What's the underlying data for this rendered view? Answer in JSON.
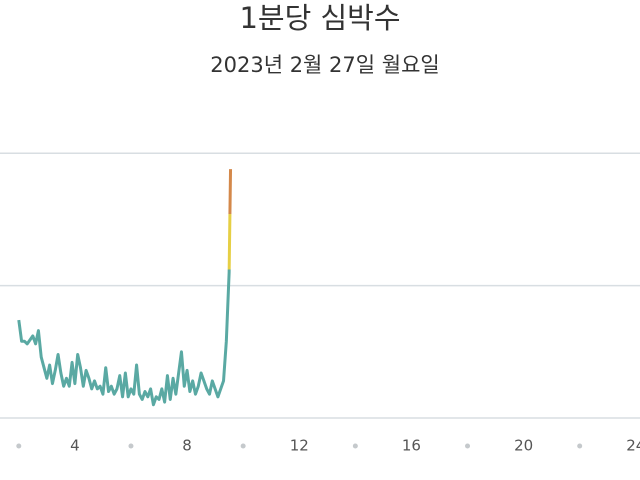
{
  "chart_data": {
    "type": "line",
    "title": "1분당 심박수",
    "subtitle": "2023년 2월 27일 월요일",
    "x": [
      2.0,
      2.1,
      2.2,
      2.3,
      2.5,
      2.6,
      2.7,
      2.8,
      2.9,
      3.0,
      3.1,
      3.2,
      3.3,
      3.4,
      3.5,
      3.6,
      3.7,
      3.8,
      3.9,
      4.0,
      4.1,
      4.2,
      4.3,
      4.4,
      4.5,
      4.6,
      4.7,
      4.8,
      4.9,
      5.0,
      5.1,
      5.2,
      5.3,
      5.4,
      5.5,
      5.6,
      5.7,
      5.8,
      5.9,
      6.0,
      6.1,
      6.2,
      6.3,
      6.4,
      6.5,
      6.6,
      6.7,
      6.8,
      6.9,
      7.0,
      7.1,
      7.2,
      7.3,
      7.4,
      7.5,
      7.6,
      7.7,
      7.8,
      7.9,
      8.0,
      8.1,
      8.2,
      8.3,
      8.4,
      8.5,
      8.6,
      8.7,
      8.8,
      8.9,
      9.0,
      9.1,
      9.2,
      9.3,
      9.4,
      9.5,
      9.55
    ],
    "series": [
      {
        "color": "#5aa9a3",
        "values": [
          87,
          79,
          79,
          78,
          81,
          78,
          83,
          73,
          69,
          65,
          70,
          63,
          68,
          74,
          67,
          62,
          65,
          62,
          71,
          63,
          74,
          69,
          62,
          68,
          65,
          61,
          64,
          61,
          62,
          59,
          69,
          60,
          62,
          59,
          61,
          66,
          58,
          67,
          58,
          61,
          59,
          70,
          59,
          57,
          60,
          58,
          61,
          55,
          58,
          57,
          61,
          56,
          66,
          57,
          65,
          59,
          67,
          75,
          62,
          68,
          60,
          64,
          59,
          62,
          67,
          64,
          61,
          59,
          64,
          61,
          58,
          61,
          64,
          79,
          105,
          144
        ]
      }
    ],
    "color_zones": [
      {
        "min": 106,
        "color": "#e6cf45"
      },
      {
        "min": 127,
        "color": "#d4884a"
      }
    ],
    "xlim": [
      1.33,
      24.15
    ],
    "xticks": [
      4,
      8,
      12,
      16,
      20,
      24
    ],
    "xminorticks": [
      2,
      6,
      10,
      14,
      18,
      22
    ],
    "ylim": [
      50,
      155
    ],
    "yticks": [
      50,
      100,
      150
    ],
    "grid": true
  }
}
